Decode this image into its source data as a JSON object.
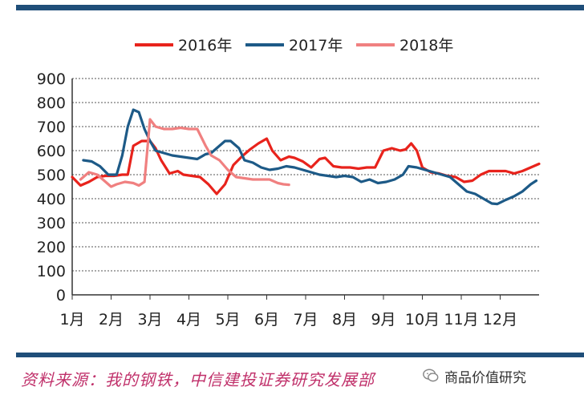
{
  "chart_data": {
    "type": "line",
    "categories": [
      "1月",
      "2月",
      "3月",
      "4月",
      "5月",
      "6月",
      "7月",
      "8月",
      "9月",
      "10月",
      "11月",
      "12月"
    ],
    "ylim": [
      0,
      900
    ],
    "yticks": [
      0,
      100,
      200,
      300,
      400,
      500,
      600,
      700,
      800,
      900
    ],
    "grid": true,
    "legend_position": "top",
    "series": [
      {
        "name": "2016年",
        "color": "#e8231c",
        "points": [
          [
            0.0,
            490
          ],
          [
            0.3,
            455
          ],
          [
            0.6,
            470
          ],
          [
            0.9,
            490
          ],
          [
            1.2,
            495
          ],
          [
            1.5,
            495
          ],
          [
            1.8,
            500
          ],
          [
            2.0,
            500
          ],
          [
            2.2,
            620
          ],
          [
            2.5,
            640
          ],
          [
            2.8,
            640
          ],
          [
            3.0,
            610
          ],
          [
            3.2,
            560
          ],
          [
            3.5,
            505
          ],
          [
            3.8,
            515
          ],
          [
            4.0,
            500
          ],
          [
            4.3,
            495
          ],
          [
            4.6,
            490
          ],
          [
            4.9,
            460
          ],
          [
            5.2,
            420
          ],
          [
            5.5,
            460
          ],
          [
            5.8,
            540
          ],
          [
            6.1,
            575
          ],
          [
            6.4,
            605
          ],
          [
            6.7,
            630
          ],
          [
            7.0,
            650
          ],
          [
            7.2,
            600
          ],
          [
            7.5,
            560
          ],
          [
            7.8,
            575
          ],
          [
            8.0,
            570
          ],
          [
            8.3,
            555
          ],
          [
            8.6,
            530
          ],
          [
            8.9,
            565
          ],
          [
            9.1,
            570
          ],
          [
            9.4,
            535
          ],
          [
            9.7,
            530
          ],
          [
            10.0,
            530
          ],
          [
            10.3,
            525
          ],
          [
            10.6,
            530
          ],
          [
            10.9,
            530
          ],
          [
            11.2,
            600
          ],
          [
            11.5,
            610
          ],
          [
            11.8,
            600
          ],
          [
            12.0,
            605
          ],
          [
            12.2,
            630
          ],
          [
            12.4,
            600
          ],
          [
            12.6,
            530
          ],
          [
            12.9,
            510
          ],
          [
            13.2,
            505
          ],
          [
            13.5,
            495
          ],
          [
            13.8,
            490
          ],
          [
            14.1,
            470
          ],
          [
            14.4,
            475
          ],
          [
            14.7,
            500
          ],
          [
            15.0,
            515
          ],
          [
            15.3,
            515
          ],
          [
            15.6,
            515
          ],
          [
            15.9,
            505
          ],
          [
            16.2,
            515
          ],
          [
            16.5,
            530
          ],
          [
            16.8,
            545
          ]
        ]
      },
      {
        "name": "2017年",
        "color": "#1d5a87",
        "points": [
          [
            0.4,
            560
          ],
          [
            0.7,
            555
          ],
          [
            1.0,
            535
          ],
          [
            1.3,
            500
          ],
          [
            1.6,
            500
          ],
          [
            1.8,
            580
          ],
          [
            2.0,
            700
          ],
          [
            2.2,
            770
          ],
          [
            2.4,
            760
          ],
          [
            2.6,
            690
          ],
          [
            2.8,
            640
          ],
          [
            3.0,
            600
          ],
          [
            3.3,
            590
          ],
          [
            3.6,
            580
          ],
          [
            3.9,
            575
          ],
          [
            4.2,
            570
          ],
          [
            4.5,
            565
          ],
          [
            4.8,
            585
          ],
          [
            5.0,
            590
          ],
          [
            5.2,
            610
          ],
          [
            5.5,
            640
          ],
          [
            5.7,
            640
          ],
          [
            6.0,
            610
          ],
          [
            6.2,
            560
          ],
          [
            6.5,
            550
          ],
          [
            6.8,
            530
          ],
          [
            7.1,
            520
          ],
          [
            7.4,
            525
          ],
          [
            7.7,
            535
          ],
          [
            8.0,
            530
          ],
          [
            8.3,
            520
          ],
          [
            8.6,
            510
          ],
          [
            8.9,
            500
          ],
          [
            9.2,
            495
          ],
          [
            9.5,
            490
          ],
          [
            9.8,
            495
          ],
          [
            10.1,
            490
          ],
          [
            10.4,
            470
          ],
          [
            10.7,
            480
          ],
          [
            11.0,
            465
          ],
          [
            11.3,
            470
          ],
          [
            11.6,
            480
          ],
          [
            11.9,
            500
          ],
          [
            12.1,
            535
          ],
          [
            12.4,
            530
          ],
          [
            12.7,
            520
          ],
          [
            13.0,
            510
          ],
          [
            13.3,
            500
          ],
          [
            13.6,
            490
          ],
          [
            13.9,
            460
          ],
          [
            14.2,
            430
          ],
          [
            14.5,
            420
          ],
          [
            14.8,
            400
          ],
          [
            15.1,
            380
          ],
          [
            15.3,
            378
          ],
          [
            15.6,
            395
          ],
          [
            15.9,
            410
          ],
          [
            16.2,
            430
          ],
          [
            16.5,
            460
          ],
          [
            16.7,
            475
          ]
        ]
      },
      {
        "name": "2018年",
        "color": "#f08080",
        "points": [
          [
            0.3,
            480
          ],
          [
            0.6,
            510
          ],
          [
            0.9,
            500
          ],
          [
            1.2,
            470
          ],
          [
            1.4,
            450
          ],
          [
            1.6,
            460
          ],
          [
            1.9,
            470
          ],
          [
            2.2,
            465
          ],
          [
            2.4,
            455
          ],
          [
            2.6,
            470
          ],
          [
            2.8,
            730
          ],
          [
            3.0,
            700
          ],
          [
            3.3,
            690
          ],
          [
            3.6,
            690
          ],
          [
            3.9,
            695
          ],
          [
            4.2,
            690
          ],
          [
            4.5,
            690
          ],
          [
            4.8,
            620
          ],
          [
            5.0,
            580
          ],
          [
            5.3,
            560
          ],
          [
            5.6,
            520
          ],
          [
            5.9,
            490
          ],
          [
            6.2,
            485
          ],
          [
            6.5,
            480
          ],
          [
            6.8,
            480
          ],
          [
            7.1,
            480
          ],
          [
            7.4,
            465
          ],
          [
            7.6,
            460
          ],
          [
            7.8,
            458
          ]
        ]
      }
    ]
  },
  "source": "资料来源：我的钢铁，中信建投证券研究发展部",
  "watermark": {
    "icon": "wechat-icon",
    "text": "商品价值研究"
  }
}
